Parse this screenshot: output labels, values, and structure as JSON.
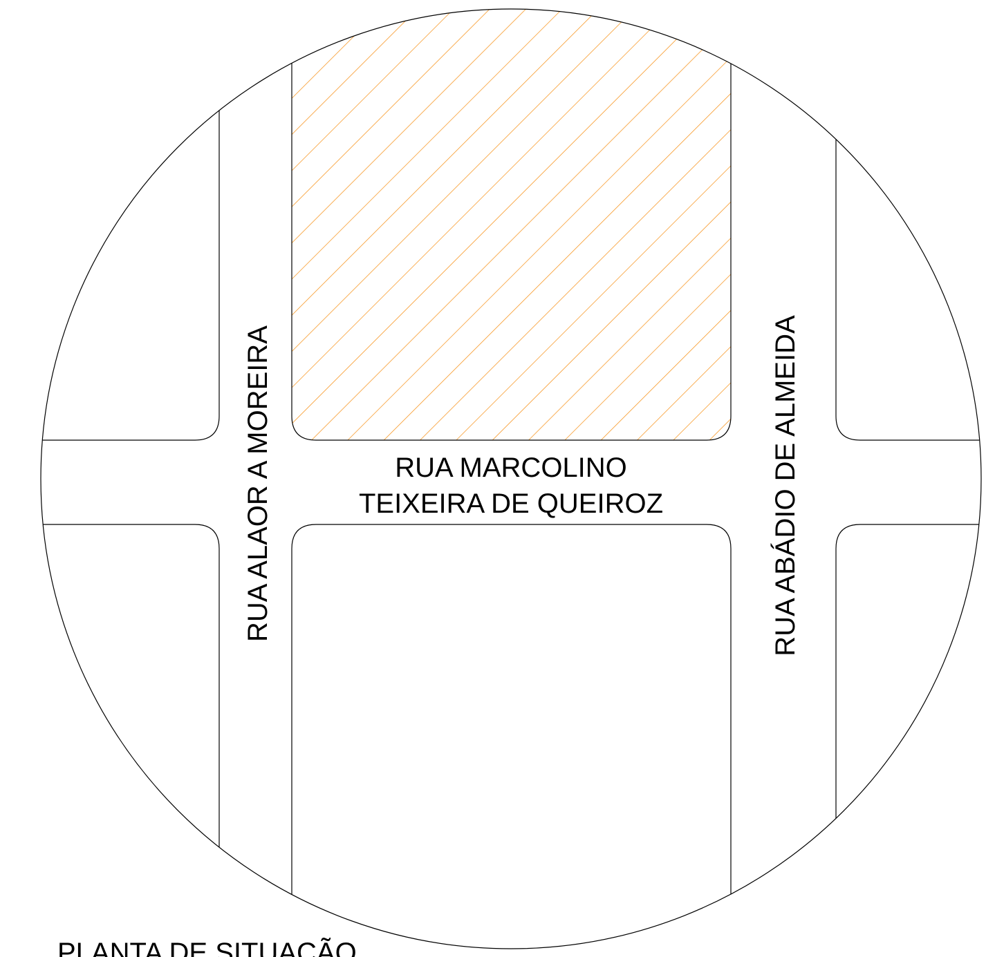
{
  "streets": {
    "west": "RUA ALAOR A MOREIRA",
    "east": "RUA ABÁDIO DE ALMEIDA",
    "cross": [
      "RUA MARCOLINO",
      "TEIXEIRA DE QUEIROZ"
    ]
  },
  "title": "PLANTA DE SITUAÇÃO"
}
